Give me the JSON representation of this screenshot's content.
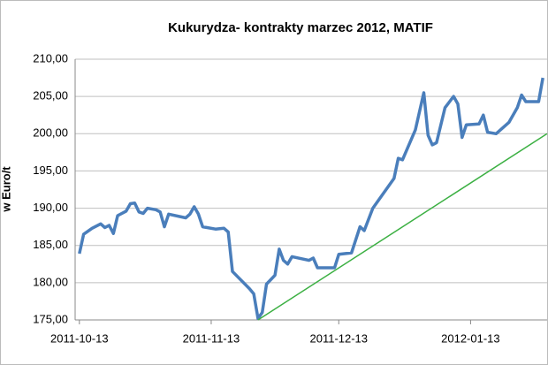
{
  "chart_data": {
    "type": "line",
    "title": "Kukurydza- kontrakty marzec 2012, MATIF",
    "y_label": "w Euro/t",
    "xlim": [
      "2011-10-12",
      "2012-01-31"
    ],
    "xticks": [
      "2011-10-13",
      "2011-11-13",
      "2011-12-13",
      "2012-01-13"
    ],
    "ylim": [
      175,
      210
    ],
    "yticks": [
      {
        "value": 175,
        "label": "175,00"
      },
      {
        "value": 180,
        "label": "180,00"
      },
      {
        "value": 185,
        "label": "185,00"
      },
      {
        "value": 190,
        "label": "190,00"
      },
      {
        "value": 195,
        "label": "195,00"
      },
      {
        "value": 200,
        "label": "200,00"
      },
      {
        "value": 205,
        "label": "205,00"
      },
      {
        "value": 210,
        "label": "210,00"
      }
    ],
    "grid": true,
    "series": [
      {
        "color": "#4a7ebb",
        "x": [
          "2011-10-13",
          "2011-10-14",
          "2011-10-16",
          "2011-10-18",
          "2011-10-19",
          "2011-10-20",
          "2011-10-21",
          "2011-10-22",
          "2011-10-24",
          "2011-10-25",
          "2011-10-26",
          "2011-10-27",
          "2011-10-28",
          "2011-10-29",
          "2011-10-31",
          "2011-11-01",
          "2011-11-02",
          "2011-11-03",
          "2011-11-07",
          "2011-11-08",
          "2011-11-09",
          "2011-11-10",
          "2011-11-11",
          "2011-11-14",
          "2011-11-16",
          "2011-11-17",
          "2011-11-18",
          "2011-11-22",
          "2011-11-23",
          "2011-11-24",
          "2011-11-25",
          "2011-11-26",
          "2011-11-28",
          "2011-11-29",
          "2011-11-30",
          "2011-12-01",
          "2011-12-02",
          "2011-12-06",
          "2011-12-07",
          "2011-12-08",
          "2011-12-12",
          "2011-12-13",
          "2011-12-16",
          "2011-12-18",
          "2011-12-19",
          "2011-12-21",
          "2011-12-26",
          "2011-12-27",
          "2011-12-28",
          "2011-12-31",
          "2012-01-02",
          "2012-01-03",
          "2012-01-04",
          "2012-01-05",
          "2012-01-07",
          "2012-01-09",
          "2012-01-10",
          "2012-01-11",
          "2012-01-12",
          "2012-01-15",
          "2012-01-16",
          "2012-01-17",
          "2012-01-19",
          "2012-01-22",
          "2012-01-24",
          "2012-01-25",
          "2012-01-26",
          "2012-01-29",
          "2012-01-30"
        ],
        "values": [
          183.9,
          186.5,
          187.3,
          187.9,
          187.4,
          187.7,
          186.6,
          189.0,
          189.6,
          190.6,
          190.7,
          189.5,
          189.3,
          190.0,
          189.8,
          189.5,
          187.5,
          189.2,
          188.7,
          189.2,
          190.2,
          189.2,
          187.5,
          187.2,
          187.3,
          186.8,
          181.5,
          179.2,
          178.5,
          175.2,
          176.0,
          179.8,
          181.0,
          184.5,
          183.0,
          182.5,
          183.5,
          183.0,
          183.3,
          182.0,
          182.0,
          183.8,
          184.0,
          187.5,
          187.0,
          190.0,
          194.0,
          196.7,
          196.5,
          200.5,
          205.5,
          199.8,
          198.5,
          198.8,
          203.5,
          205.0,
          204.0,
          199.5,
          201.2,
          201.3,
          202.5,
          200.2,
          200.0,
          201.5,
          203.5,
          205.2,
          204.3,
          204.3,
          207.5
        ]
      },
      {
        "color": "#3cb043",
        "x": [
          "2011-11-24",
          "2012-01-31"
        ],
        "values": [
          175,
          200
        ]
      }
    ]
  }
}
